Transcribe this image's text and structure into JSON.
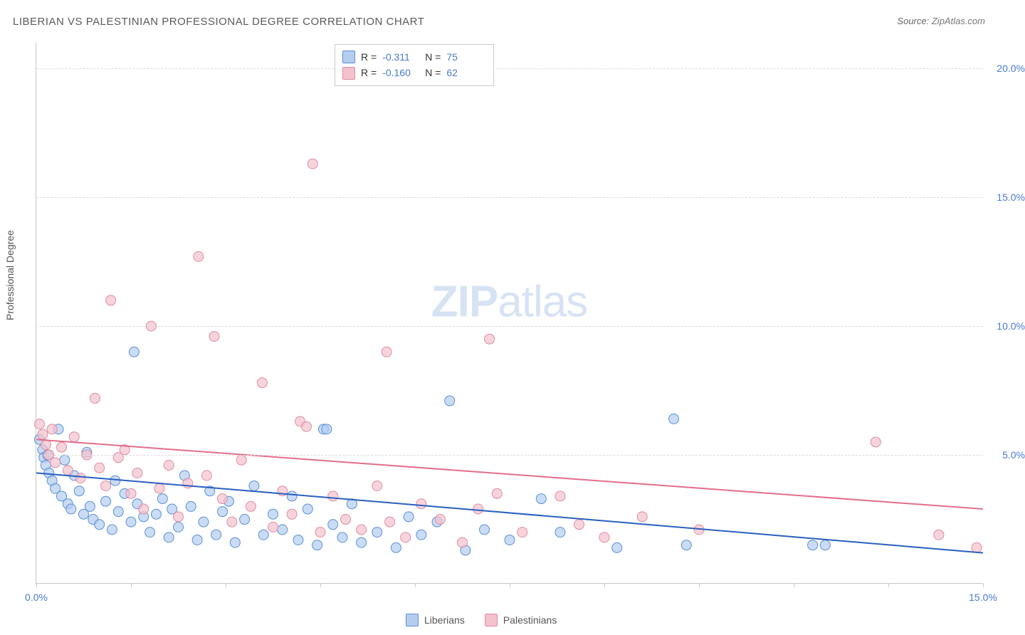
{
  "title": "LIBERIAN VS PALESTINIAN PROFESSIONAL DEGREE CORRELATION CHART",
  "source_label": "Source:",
  "source_value": "ZipAtlas.com",
  "ylabel": "Professional Degree",
  "watermark_bold": "ZIP",
  "watermark_light": "atlas",
  "x_axis": {
    "min": 0,
    "max": 15,
    "ticks": [
      0,
      1.5,
      3,
      4.5,
      6,
      7.5,
      9,
      10.5,
      12,
      13.5,
      15
    ],
    "labeled_ticks": [
      0,
      15
    ],
    "label_suffix": "%"
  },
  "y_axis": {
    "min": 0,
    "max": 21,
    "gridlines": [
      5,
      10,
      15,
      20
    ],
    "label_suffix": "%"
  },
  "series": [
    {
      "id": "liberians",
      "label": "Liberians",
      "fill_color": "#b4cdef",
      "stroke_color": "#5a8fd6",
      "line_color": "#2a5fbf",
      "marker_radius": 7,
      "marker_opacity": 0.7,
      "R": "-0.311",
      "N": "75",
      "trend": {
        "x1": 0,
        "y1": 4.3,
        "x2": 15,
        "y2": 1.2
      },
      "points": [
        [
          0.05,
          5.6
        ],
        [
          0.1,
          5.2
        ],
        [
          0.12,
          4.9
        ],
        [
          0.15,
          4.6
        ],
        [
          0.18,
          5.0
        ],
        [
          0.2,
          4.3
        ],
        [
          0.25,
          4.0
        ],
        [
          0.3,
          3.7
        ],
        [
          0.35,
          6.0
        ],
        [
          0.4,
          3.4
        ],
        [
          0.45,
          4.8
        ],
        [
          0.5,
          3.1
        ],
        [
          0.55,
          2.9
        ],
        [
          0.6,
          4.2
        ],
        [
          0.68,
          3.6
        ],
        [
          0.75,
          2.7
        ],
        [
          0.8,
          5.1
        ],
        [
          0.85,
          3.0
        ],
        [
          0.9,
          2.5
        ],
        [
          1.0,
          2.3
        ],
        [
          1.1,
          3.2
        ],
        [
          1.2,
          2.1
        ],
        [
          1.25,
          4.0
        ],
        [
          1.3,
          2.8
        ],
        [
          1.4,
          3.5
        ],
        [
          1.5,
          2.4
        ],
        [
          1.55,
          9.0
        ],
        [
          1.6,
          3.1
        ],
        [
          1.7,
          2.6
        ],
        [
          1.8,
          2.0
        ],
        [
          1.9,
          2.7
        ],
        [
          2.0,
          3.3
        ],
        [
          2.1,
          1.8
        ],
        [
          2.15,
          2.9
        ],
        [
          2.25,
          2.2
        ],
        [
          2.35,
          4.2
        ],
        [
          2.45,
          3.0
        ],
        [
          2.55,
          1.7
        ],
        [
          2.65,
          2.4
        ],
        [
          2.75,
          3.6
        ],
        [
          2.85,
          1.9
        ],
        [
          2.95,
          2.8
        ],
        [
          3.05,
          3.2
        ],
        [
          3.15,
          1.6
        ],
        [
          3.3,
          2.5
        ],
        [
          3.45,
          3.8
        ],
        [
          3.6,
          1.9
        ],
        [
          3.75,
          2.7
        ],
        [
          3.9,
          2.1
        ],
        [
          4.05,
          3.4
        ],
        [
          4.15,
          1.7
        ],
        [
          4.3,
          2.9
        ],
        [
          4.45,
          1.5
        ],
        [
          4.55,
          6.0
        ],
        [
          4.6,
          6.0
        ],
        [
          4.7,
          2.3
        ],
        [
          4.85,
          1.8
        ],
        [
          5.0,
          3.1
        ],
        [
          5.15,
          1.6
        ],
        [
          5.4,
          2.0
        ],
        [
          5.7,
          1.4
        ],
        [
          5.9,
          2.6
        ],
        [
          6.1,
          1.9
        ],
        [
          6.35,
          2.4
        ],
        [
          6.55,
          7.1
        ],
        [
          6.8,
          1.3
        ],
        [
          7.1,
          2.1
        ],
        [
          7.5,
          1.7
        ],
        [
          8.0,
          3.3
        ],
        [
          8.3,
          2.0
        ],
        [
          9.2,
          1.4
        ],
        [
          10.1,
          6.4
        ],
        [
          10.3,
          1.5
        ],
        [
          12.3,
          1.5
        ],
        [
          12.5,
          1.5
        ]
      ]
    },
    {
      "id": "palestinians",
      "label": "Palestinians",
      "fill_color": "#f4c2cd",
      "stroke_color": "#e08ba0",
      "line_color": "#e36e8c",
      "marker_radius": 7,
      "marker_opacity": 0.7,
      "R": "-0.160",
      "N": "62",
      "trend": {
        "x1": 0,
        "y1": 5.6,
        "x2": 15,
        "y2": 2.9
      },
      "points": [
        [
          0.05,
          6.2
        ],
        [
          0.1,
          5.8
        ],
        [
          0.15,
          5.4
        ],
        [
          0.2,
          5.0
        ],
        [
          0.25,
          6.0
        ],
        [
          0.3,
          4.7
        ],
        [
          0.4,
          5.3
        ],
        [
          0.5,
          4.4
        ],
        [
          0.6,
          5.7
        ],
        [
          0.7,
          4.1
        ],
        [
          0.8,
          5.0
        ],
        [
          0.93,
          7.2
        ],
        [
          1.0,
          4.5
        ],
        [
          1.1,
          3.8
        ],
        [
          1.18,
          11.0
        ],
        [
          1.3,
          4.9
        ],
        [
          1.4,
          5.2
        ],
        [
          1.5,
          3.5
        ],
        [
          1.6,
          4.3
        ],
        [
          1.7,
          2.9
        ],
        [
          1.82,
          10.0
        ],
        [
          1.95,
          3.7
        ],
        [
          2.1,
          4.6
        ],
        [
          2.25,
          2.6
        ],
        [
          2.4,
          3.9
        ],
        [
          2.57,
          12.7
        ],
        [
          2.7,
          4.2
        ],
        [
          2.82,
          9.6
        ],
        [
          2.95,
          3.3
        ],
        [
          3.1,
          2.4
        ],
        [
          3.25,
          4.8
        ],
        [
          3.4,
          3.0
        ],
        [
          3.58,
          7.8
        ],
        [
          3.75,
          2.2
        ],
        [
          3.9,
          3.6
        ],
        [
          4.05,
          2.7
        ],
        [
          4.18,
          6.3
        ],
        [
          4.28,
          6.1
        ],
        [
          4.38,
          16.3
        ],
        [
          4.5,
          2.0
        ],
        [
          4.7,
          3.4
        ],
        [
          4.9,
          2.5
        ],
        [
          5.15,
          2.1
        ],
        [
          5.4,
          3.8
        ],
        [
          5.55,
          9.0
        ],
        [
          5.6,
          2.4
        ],
        [
          5.85,
          1.8
        ],
        [
          6.1,
          3.1
        ],
        [
          6.4,
          2.5
        ],
        [
          6.75,
          1.6
        ],
        [
          7.0,
          2.9
        ],
        [
          7.18,
          9.5
        ],
        [
          7.3,
          3.5
        ],
        [
          7.7,
          2.0
        ],
        [
          8.3,
          3.4
        ],
        [
          8.6,
          2.3
        ],
        [
          9.0,
          1.8
        ],
        [
          9.6,
          2.6
        ],
        [
          10.5,
          2.1
        ],
        [
          13.3,
          5.5
        ],
        [
          14.3,
          1.9
        ],
        [
          14.9,
          1.4
        ]
      ]
    }
  ],
  "legend_labels": {
    "R": "R =",
    "N": "N ="
  },
  "colors": {
    "axis_text": "#4a7bd0",
    "grid": "#dcdcdc",
    "background": "#ffffff"
  }
}
